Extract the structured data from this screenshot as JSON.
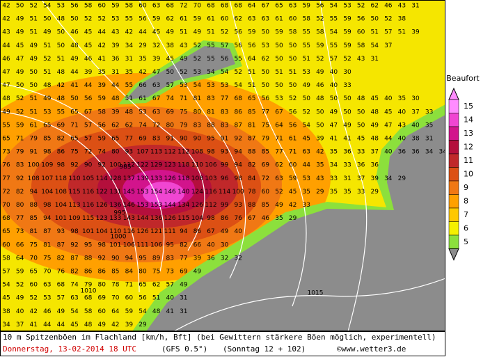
{
  "map": {
    "grid": {
      "rows": [
        [
          42,
          50,
          52,
          54,
          53,
          56,
          58,
          60,
          59,
          58,
          60,
          63,
          68,
          72,
          70,
          68,
          68,
          68,
          64,
          67,
          65,
          63,
          59,
          56,
          54,
          53,
          52,
          62,
          46,
          43,
          31
        ],
        [
          42,
          49,
          51,
          50,
          48,
          50,
          52,
          52,
          53,
          55,
          56,
          59,
          62,
          61,
          59,
          61,
          60,
          62,
          63,
          63,
          61,
          60,
          58,
          52,
          55,
          59,
          56,
          50,
          52,
          38
        ],
        [
          43,
          49,
          51,
          49,
          50,
          46,
          45,
          44,
          43,
          42,
          44,
          45,
          49,
          51,
          49,
          51,
          52,
          56,
          59,
          50,
          59,
          58,
          55,
          58,
          54,
          59,
          60,
          51,
          57,
          51,
          39
        ],
        [
          44,
          45,
          49,
          51,
          50,
          48,
          45,
          42,
          39,
          34,
          29,
          32,
          38,
          43,
          52,
          55,
          57,
          56,
          56,
          53,
          50,
          50,
          55,
          59,
          55,
          59,
          58,
          54,
          37
        ],
        [
          46,
          47,
          49,
          52,
          51,
          49,
          46,
          41,
          36,
          31,
          35,
          39,
          45,
          49,
          52,
          55,
          56,
          55,
          64,
          62,
          50,
          50,
          51,
          52,
          57,
          52,
          43,
          31
        ],
        [
          47,
          49,
          50,
          51,
          48,
          44,
          39,
          35,
          31,
          35,
          42,
          47,
          50,
          52,
          53,
          54,
          54,
          52,
          51,
          50,
          51,
          51,
          53,
          49,
          40,
          30
        ],
        [
          47,
          50,
          50,
          48,
          42,
          41,
          44,
          39,
          44,
          55,
          66,
          63,
          57,
          53,
          54,
          53,
          53,
          54,
          51,
          50,
          50,
          50,
          49,
          46,
          40,
          33
        ],
        [
          48,
          52,
          51,
          49,
          48,
          50,
          56,
          59,
          48,
          51,
          61,
          67,
          74,
          71,
          81,
          83,
          77,
          68,
          65,
          56,
          53,
          52,
          50,
          48,
          50,
          50,
          48,
          45,
          40,
          35,
          30
        ],
        [
          49,
          52,
          51,
          53,
          55,
          65,
          67,
          58,
          39,
          48,
          53,
          63,
          69,
          75,
          80,
          81,
          83,
          86,
          85,
          77,
          67,
          56,
          52,
          50,
          49,
          50,
          50,
          48,
          45,
          40,
          37,
          33
        ],
        [
          55,
          59,
          61,
          65,
          69,
          71,
          57,
          56,
          62,
          62,
          74,
          72,
          80,
          79,
          83,
          88,
          83,
          87,
          81,
          75,
          64,
          56,
          54,
          50,
          47,
          49,
          50,
          49,
          47,
          43,
          40,
          35
        ],
        [
          65,
          71,
          79,
          85,
          82,
          65,
          57,
          59,
          65,
          77,
          69,
          83,
          91,
          90,
          90,
          95,
          91,
          92,
          87,
          79,
          71,
          61,
          45,
          39,
          41,
          41,
          45,
          48,
          44,
          40,
          38,
          31
        ],
        [
          73,
          79,
          91,
          98,
          86,
          75,
          72,
          74,
          80,
          93,
          107,
          113,
          112,
          112,
          108,
          98,
          93,
          94,
          88,
          85,
          77,
          71,
          63,
          42,
          35,
          36,
          33,
          37,
          40,
          36,
          36,
          34,
          34
        ],
        [
          76,
          83,
          100,
          109,
          98,
          92,
          90,
          92,
          100,
          112,
          122,
          129,
          123,
          118,
          110,
          106,
          99,
          94,
          82,
          69,
          62,
          60,
          44,
          35,
          34,
          33,
          36,
          36
        ],
        [
          77,
          92,
          108,
          107,
          118,
          110,
          105,
          114,
          128,
          137,
          139,
          133,
          126,
          118,
          108,
          103,
          96,
          98,
          84,
          72,
          63,
          59,
          53,
          43,
          33,
          31,
          37,
          39,
          34,
          29
        ],
        [
          72,
          82,
          94,
          104,
          108,
          115,
          116,
          122,
          131,
          145,
          153,
          154,
          146,
          140,
          124,
          116,
          114,
          100,
          78,
          60,
          52,
          45,
          35,
          29,
          35,
          35,
          33,
          29
        ],
        [
          70,
          80,
          88,
          98,
          104,
          113,
          116,
          126,
          136,
          146,
          153,
          153,
          144,
          134,
          126,
          112,
          99,
          93,
          88,
          85,
          49,
          42,
          33
        ],
        [
          68,
          77,
          85,
          94,
          101,
          109,
          115,
          123,
          133,
          143,
          144,
          136,
          126,
          115,
          104,
          98,
          86,
          76,
          67,
          46,
          35,
          29
        ],
        [
          65,
          73,
          81,
          87,
          93,
          98,
          101,
          104,
          110,
          116,
          126,
          121,
          111,
          94,
          86,
          67,
          49,
          40
        ],
        [
          60,
          66,
          75,
          81,
          87,
          92,
          95,
          98,
          101,
          106,
          111,
          106,
          95,
          82,
          66,
          40,
          30
        ],
        [
          58,
          64,
          70,
          75,
          82,
          87,
          88,
          92,
          90,
          94,
          95,
          89,
          83,
          77,
          39,
          36,
          32,
          32
        ],
        [
          57,
          59,
          65,
          70,
          76,
          82,
          86,
          86,
          85,
          84,
          80,
          75,
          73,
          69,
          49
        ],
        [
          54,
          52,
          60,
          63,
          68,
          74,
          79,
          80,
          78,
          71,
          65,
          62,
          57,
          49
        ],
        [
          45,
          49,
          52,
          53,
          57,
          63,
          68,
          69,
          70,
          60,
          56,
          51,
          40,
          31
        ],
        [
          38,
          40,
          42,
          46,
          49,
          54,
          58,
          60,
          64,
          59,
          54,
          48,
          41,
          31
        ],
        [
          34,
          37,
          41,
          44,
          44,
          45,
          48,
          49,
          42,
          39,
          29
        ]
      ]
    },
    "isobar_labels": [
      "985",
      "995",
      "1000",
      "1010",
      "1015"
    ],
    "legend": {
      "title": "Beaufort",
      "levels": [
        15,
        14,
        13,
        12,
        11,
        10,
        9,
        8,
        7,
        6,
        5
      ],
      "colors": [
        "#ff8cff",
        "#f046d2",
        "#d2148c",
        "#b40f3c",
        "#c0282a",
        "#dc5014",
        "#f07814",
        "#ffa000",
        "#ffc800",
        "#f5f000",
        "#8ce03c"
      ]
    },
    "footer": {
      "line1": "10 m Spitzenböen im Flachland [km/h, Bft] (bei Gewittern stärkere Böen möglich, experimentell)",
      "date": "Donnerstag, 13-02-2014   18 UTC",
      "model": "(GFS 0.5°)",
      "run": "(Sonntag 12 + 102)",
      "site": "©www.wetter3.de"
    }
  }
}
